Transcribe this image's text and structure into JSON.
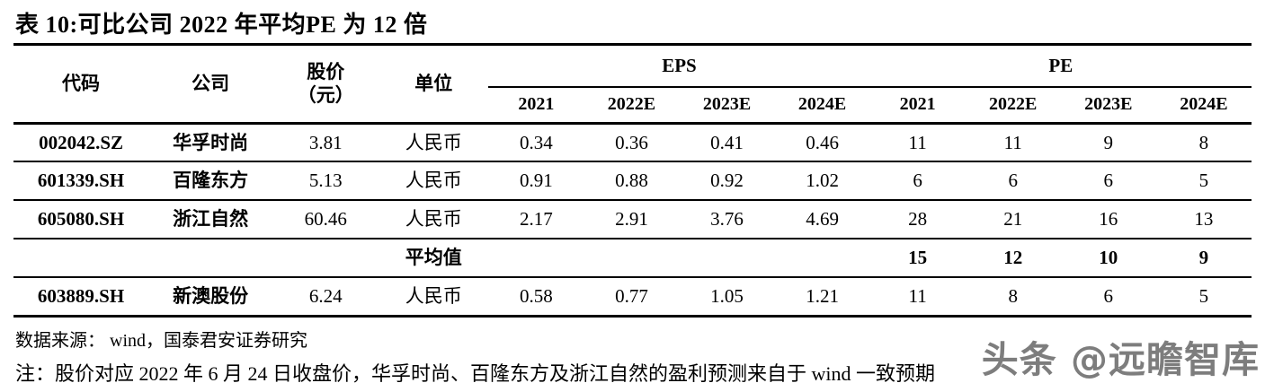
{
  "title": "表 10:可比公司 2022 年平均PE 为 12 倍",
  "table": {
    "headers": {
      "code": "代码",
      "company": "公司",
      "price_line1": "股价",
      "price_line2": "（元）",
      "unit": "单位",
      "eps_group": "EPS",
      "pe_group": "PE",
      "years": [
        "2021",
        "2022E",
        "2023E",
        "2024E"
      ]
    },
    "rows": [
      {
        "code": "002042.SZ",
        "company": "华孚时尚",
        "price": "3.81",
        "unit": "人民币",
        "eps": [
          "0.34",
          "0.36",
          "0.41",
          "0.46"
        ],
        "pe": [
          "11",
          "11",
          "9",
          "8"
        ],
        "is_average": false
      },
      {
        "code": "601339.SH",
        "company": "百隆东方",
        "price": "5.13",
        "unit": "人民币",
        "eps": [
          "0.91",
          "0.88",
          "0.92",
          "1.02"
        ],
        "pe": [
          "6",
          "6",
          "6",
          "5"
        ],
        "is_average": false
      },
      {
        "code": "605080.SH",
        "company": "浙江自然",
        "price": "60.46",
        "unit": "人民币",
        "eps": [
          "2.17",
          "2.91",
          "3.76",
          "4.69"
        ],
        "pe": [
          "28",
          "21",
          "16",
          "13"
        ],
        "is_average": false
      },
      {
        "code": "",
        "company": "",
        "price": "",
        "unit": "平均值",
        "eps": [
          "",
          "",
          "",
          ""
        ],
        "pe": [
          "15",
          "12",
          "10",
          "9"
        ],
        "is_average": true
      },
      {
        "code": "603889.SH",
        "company": "新澳股份",
        "price": "6.24",
        "unit": "人民币",
        "eps": [
          "0.58",
          "0.77",
          "1.05",
          "1.21"
        ],
        "pe": [
          "11",
          "8",
          "6",
          "5"
        ],
        "is_average": false
      }
    ]
  },
  "footer": {
    "source": "数据来源： wind，国泰君安证券研究",
    "note": "注：股价对应 2022 年 6 月 24 日收盘价，华孚时尚、百隆东方及浙江自然的盈利预测来自于 wind 一致预期",
    "watermark": "头条 @远瞻智库"
  },
  "colors": {
    "text": "#000000",
    "background": "#ffffff",
    "rule": "#000000",
    "watermark": "#7d7d7d"
  }
}
